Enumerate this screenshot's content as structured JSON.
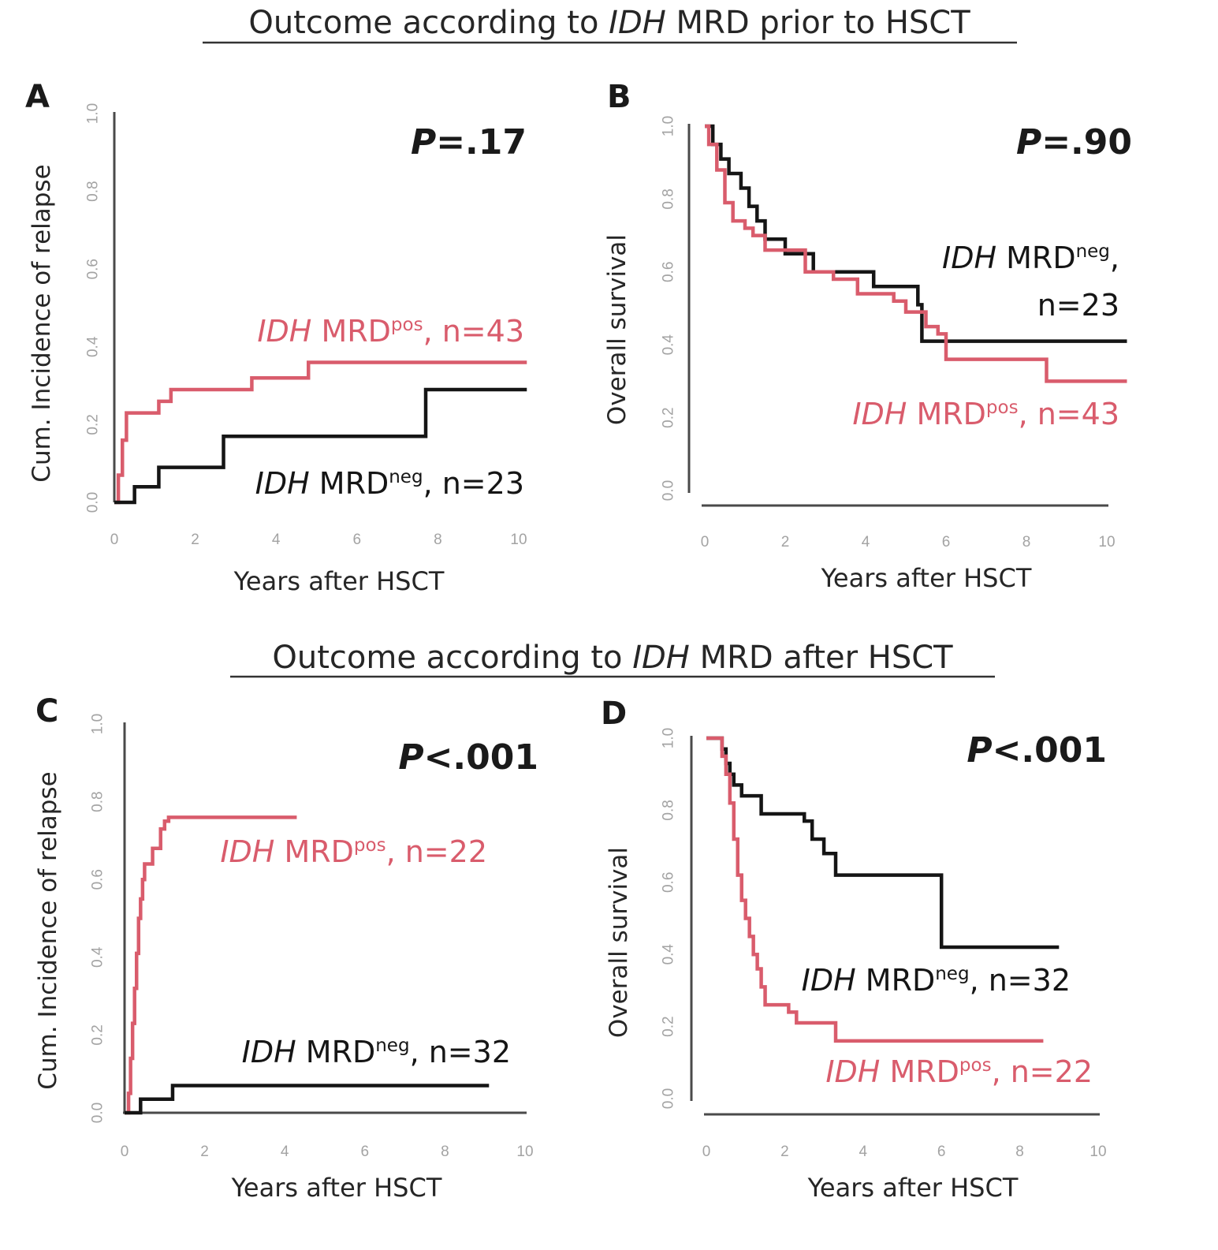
{
  "colors": {
    "pos": "#d95c6c",
    "neg": "#151515",
    "axis": "#4a4a4a",
    "tick": "#a3a3a3"
  },
  "titles": {
    "top": {
      "prefix": "Outcome according to ",
      "italic": "IDH",
      "suffix": " MRD prior to HSCT"
    },
    "bottom": {
      "prefix": "Outcome according to ",
      "italic": "IDH",
      "suffix": " MRD after HSCT"
    }
  },
  "chart_data": [
    {
      "panel": "A",
      "type": "line",
      "step": true,
      "ylabel": "Cum. Incidence of relapse",
      "xlabel": "Years after HSCT",
      "xlim": [
        0,
        10
      ],
      "ylim": [
        0,
        1
      ],
      "xticks": [
        "0",
        "2",
        "4",
        "6",
        "8",
        "10"
      ],
      "yticks": [
        "0.0",
        "0.2",
        "0.4",
        "0.6",
        "0.8",
        "1.0"
      ],
      "pvalue": {
        "italic": "P",
        "text": "=.17"
      },
      "series": [
        {
          "name": "IDH MRDpos",
          "group": "pos",
          "x": [
            0,
            0.1,
            0.2,
            0.3,
            1.1,
            1.4,
            3.4,
            4.8,
            10.2
          ],
          "y": [
            0,
            0.07,
            0.16,
            0.23,
            0.26,
            0.29,
            0.32,
            0.36,
            0.36
          ],
          "label": {
            "italic": "IDH",
            "main": " MRD",
            "sup": "pos",
            "rest": ", n=43"
          }
        },
        {
          "name": "IDH MRDneg",
          "group": "neg",
          "x": [
            0,
            0.5,
            1.1,
            2.7,
            7.7,
            10.2
          ],
          "y": [
            0,
            0.04,
            0.09,
            0.17,
            0.29,
            0.29
          ],
          "label": {
            "italic": "IDH",
            "main": " MRD",
            "sup": "neg",
            "rest": ", n=23"
          }
        }
      ]
    },
    {
      "panel": "B",
      "type": "line",
      "step": true,
      "ylabel": "Overall survival",
      "xlabel": "Years after HSCT",
      "xlim": [
        0,
        10
      ],
      "ylim": [
        0,
        1
      ],
      "xticks": [
        "0",
        "2",
        "4",
        "6",
        "8",
        "10"
      ],
      "yticks": [
        "0.0",
        "0.2",
        "0.4",
        "0.6",
        "0.8",
        "1.0"
      ],
      "pvalue": {
        "italic": "P",
        "text": "=.90"
      },
      "series": [
        {
          "name": "IDH MRDneg",
          "group": "neg",
          "x": [
            0,
            0.2,
            0.4,
            0.6,
            0.9,
            1.1,
            1.3,
            1.5,
            2.0,
            2.7,
            4.2,
            5.3,
            5.4,
            10.5
          ],
          "y": [
            1,
            0.95,
            0.91,
            0.87,
            0.83,
            0.78,
            0.74,
            0.69,
            0.65,
            0.6,
            0.56,
            0.51,
            0.41,
            0.41
          ],
          "label": {
            "italic": "IDH",
            "main": " MRD",
            "sup": "neg",
            "rest": ",",
            "line2": "n=23"
          }
        },
        {
          "name": "IDH MRDpos",
          "group": "pos",
          "x": [
            0,
            0.1,
            0.3,
            0.5,
            0.7,
            1.0,
            1.2,
            1.5,
            2.5,
            3.2,
            3.8,
            4.7,
            5.0,
            5.5,
            5.8,
            6.0,
            8.5,
            10.5
          ],
          "y": [
            1,
            0.95,
            0.88,
            0.79,
            0.74,
            0.72,
            0.7,
            0.66,
            0.6,
            0.58,
            0.54,
            0.52,
            0.49,
            0.45,
            0.43,
            0.36,
            0.3,
            0.3
          ],
          "label": {
            "italic": "IDH",
            "main": " MRD",
            "sup": "pos",
            "rest": ", n=43"
          }
        }
      ]
    },
    {
      "panel": "C",
      "type": "line",
      "step": true,
      "ylabel": "Cum. Incidence  of relapse",
      "xlabel": "Years after HSCT",
      "xlim": [
        0,
        10
      ],
      "ylim": [
        0,
        1
      ],
      "xticks": [
        "0",
        "2",
        "4",
        "6",
        "8",
        "10"
      ],
      "yticks": [
        "0.0",
        "0.2",
        "0.4",
        "0.6",
        "0.8",
        "1.0"
      ],
      "pvalue": {
        "italic": "P",
        "text": "<.001"
      },
      "series": [
        {
          "name": "IDH MRDpos",
          "group": "pos",
          "x": [
            0,
            0.1,
            0.15,
            0.2,
            0.25,
            0.3,
            0.35,
            0.4,
            0.45,
            0.5,
            0.7,
            0.9,
            1.0,
            1.1,
            4.3
          ],
          "y": [
            0,
            0.05,
            0.14,
            0.23,
            0.32,
            0.41,
            0.5,
            0.55,
            0.6,
            0.64,
            0.68,
            0.73,
            0.75,
            0.76,
            0.76
          ],
          "label": {
            "italic": "IDH",
            "main": " MRD",
            "sup": "pos",
            "rest": ", n=22"
          }
        },
        {
          "name": "IDH MRDneg",
          "group": "neg",
          "x": [
            0,
            0.4,
            1.2,
            9.1
          ],
          "y": [
            0,
            0.035,
            0.07,
            0.07
          ],
          "label": {
            "italic": "IDH",
            "main": " MRD",
            "sup": "neg",
            "rest": ", n=32"
          }
        }
      ]
    },
    {
      "panel": "D",
      "type": "line",
      "step": true,
      "ylabel": "Overall survival",
      "xlabel": "Years after HSCT",
      "xlim": [
        0,
        10
      ],
      "ylim": [
        0,
        1
      ],
      "xticks": [
        "0",
        "2",
        "4",
        "6",
        "8",
        "10"
      ],
      "yticks": [
        "0.0",
        "0.2",
        "0.4",
        "0.6",
        "0.8",
        "1.0"
      ],
      "pvalue": {
        "italic": "P",
        "text": "<.001"
      },
      "series": [
        {
          "name": "IDH MRDneg",
          "group": "neg",
          "x": [
            0,
            0.4,
            0.5,
            0.6,
            0.7,
            0.9,
            1.4,
            2.5,
            2.7,
            3.0,
            3.3,
            6.0,
            9.0
          ],
          "y": [
            1,
            0.97,
            0.93,
            0.9,
            0.87,
            0.84,
            0.79,
            0.77,
            0.72,
            0.68,
            0.62,
            0.42,
            0.42
          ],
          "label": {
            "italic": "IDH",
            "main": " MRD",
            "sup": "neg",
            "rest": ", n=32"
          }
        },
        {
          "name": "IDH MRDpos",
          "group": "pos",
          "x": [
            0,
            0.4,
            0.5,
            0.6,
            0.7,
            0.8,
            0.9,
            1.0,
            1.1,
            1.2,
            1.3,
            1.4,
            1.5,
            2.1,
            2.3,
            3.3,
            8.6
          ],
          "y": [
            1,
            0.95,
            0.9,
            0.82,
            0.72,
            0.62,
            0.55,
            0.5,
            0.45,
            0.4,
            0.36,
            0.31,
            0.26,
            0.24,
            0.21,
            0.16,
            0.16
          ],
          "label": {
            "italic": "IDH",
            "main": " MRD",
            "sup": "pos",
            "rest": ", n=22"
          }
        }
      ]
    }
  ]
}
